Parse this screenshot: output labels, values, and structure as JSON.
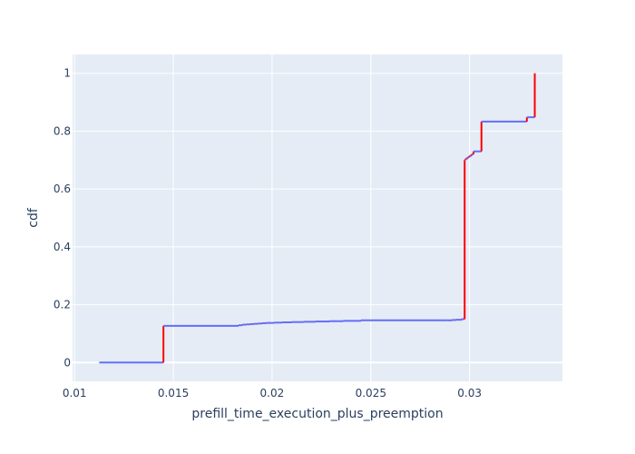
{
  "chart_data": {
    "type": "line",
    "title": "",
    "xlabel": "prefill_time_execution_plus_preemption",
    "ylabel": "cdf",
    "xlim": [
      0.0099,
      0.0347
    ],
    "ylim": [
      -0.065,
      1.065
    ],
    "x_ticks": [
      0.01,
      0.015,
      0.02,
      0.025,
      0.03
    ],
    "x_tick_labels": [
      "0.01",
      "0.015",
      "0.02",
      "0.025",
      "0.03"
    ],
    "y_ticks": [
      0,
      0.2,
      0.4,
      0.6,
      0.8,
      1
    ],
    "y_tick_labels": [
      "0",
      "0.2",
      "0.4",
      "0.6",
      "0.8",
      "1"
    ],
    "grid": true,
    "legend": "none",
    "colors": {
      "plot_background": "#e5ecf6",
      "grid": "#ffffff",
      "text": "#2a3f5f",
      "horizontal_steps": "#636efa",
      "vertical_steps": "#ff0000"
    },
    "series": [
      {
        "x": [
          0.01125,
          0.0145,
          0.0145,
          0.0183,
          0.0183,
          0.0185,
          0.0187,
          0.0189,
          0.0191,
          0.0193,
          0.0195,
          0.0197,
          0.0201,
          0.0205,
          0.021,
          0.0216,
          0.0222,
          0.0229,
          0.0236,
          0.0245,
          0.0289,
          0.0291,
          0.0293,
          0.0296,
          0.02975,
          0.02975,
          0.0298,
          0.0299,
          0.03,
          0.0301,
          0.0302,
          0.0305,
          0.0306,
          0.0306,
          0.0329,
          0.0329,
          0.0333,
          0.0333
        ],
        "y": [
          0,
          0,
          0.127,
          0.127,
          0.129,
          0.131,
          0.132,
          0.133,
          0.134,
          0.135,
          0.136,
          0.137,
          0.138,
          0.139,
          0.14,
          0.141,
          0.142,
          0.143,
          0.144,
          0.146,
          0.146,
          0.147,
          0.148,
          0.15,
          0.152,
          0.7,
          0.705,
          0.71,
          0.715,
          0.72,
          0.73,
          0.73,
          0.73,
          0.833,
          0.833,
          0.848,
          0.848,
          1.0
        ]
      }
    ]
  }
}
